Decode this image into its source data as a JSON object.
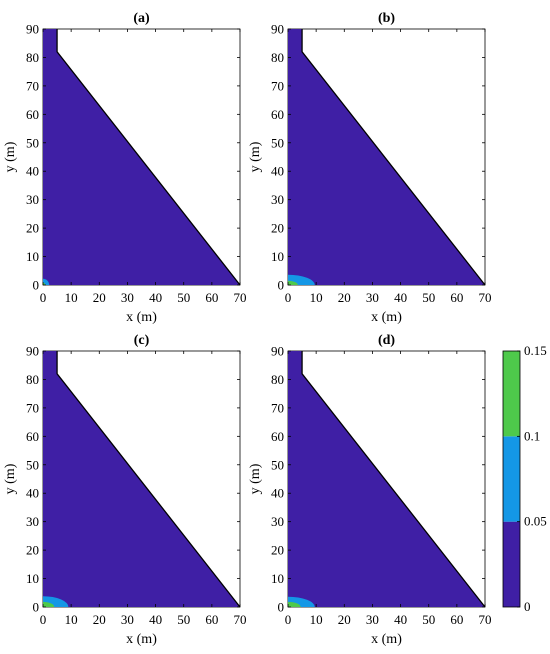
{
  "figure": {
    "colorbar": {
      "ticks": [
        "0",
        "0.05",
        "0.1",
        "0.15"
      ],
      "levels": [
        0,
        0.05,
        0.1,
        0.15
      ],
      "colors": [
        "#3f1fa5",
        "#1497e6",
        "#4ec94b",
        "#ffff0a"
      ]
    }
  },
  "chart_data": [
    {
      "type": "heatmap",
      "title": "(a)",
      "xlabel": "x (m)",
      "ylabel": "y (m)",
      "xlim": [
        0,
        70
      ],
      "ylim": [
        0,
        90
      ],
      "xticks": [
        "0",
        "10",
        "20",
        "30",
        "40",
        "50",
        "60",
        "70"
      ],
      "yticks": [
        "0",
        "10",
        "20",
        "30",
        "40",
        "50",
        "60",
        "70",
        "80",
        "90"
      ],
      "domain_outline": [
        [
          0,
          0
        ],
        [
          70,
          0
        ],
        [
          5,
          82
        ],
        [
          5,
          90
        ],
        [
          0,
          90
        ]
      ],
      "background_level": 0,
      "contours": [
        {
          "level": 0.05,
          "color": "#1497e6",
          "rx": 2.2,
          "ry": 2.2
        },
        {
          "level": 0.1,
          "color": "#4ec94b",
          "rx": 0.8,
          "ry": 0.8
        }
      ]
    },
    {
      "type": "heatmap",
      "title": "(b)",
      "xlabel": "x (m)",
      "ylabel": "y (m)",
      "xlim": [
        0,
        70
      ],
      "ylim": [
        0,
        90
      ],
      "xticks": [
        "0",
        "10",
        "20",
        "30",
        "40",
        "50",
        "60",
        "70"
      ],
      "yticks": [
        "0",
        "10",
        "20",
        "30",
        "40",
        "50",
        "60",
        "70",
        "80",
        "90"
      ],
      "domain_outline": [
        [
          0,
          0
        ],
        [
          70,
          0
        ],
        [
          5,
          82
        ],
        [
          5,
          90
        ],
        [
          0,
          90
        ]
      ],
      "background_level": 0,
      "contours": [
        {
          "level": 0.05,
          "color": "#1497e6",
          "rx": 9.5,
          "ry": 3.6
        },
        {
          "level": 0.1,
          "color": "#4ec94b",
          "rx": 3.5,
          "ry": 1.5
        }
      ]
    },
    {
      "type": "heatmap",
      "title": "(c)",
      "xlabel": "x (m)",
      "ylabel": "y (m)",
      "xlim": [
        0,
        70
      ],
      "ylim": [
        0,
        90
      ],
      "xticks": [
        "0",
        "10",
        "20",
        "30",
        "40",
        "50",
        "60",
        "70"
      ],
      "yticks": [
        "0",
        "10",
        "20",
        "30",
        "40",
        "50",
        "60",
        "70",
        "80",
        "90"
      ],
      "domain_outline": [
        [
          0,
          0
        ],
        [
          70,
          0
        ],
        [
          5,
          82
        ],
        [
          5,
          90
        ],
        [
          0,
          90
        ]
      ],
      "background_level": 0,
      "contours": [
        {
          "level": 0.05,
          "color": "#1497e6",
          "rx": 9.0,
          "ry": 3.8
        },
        {
          "level": 0.1,
          "color": "#4ec94b",
          "rx": 4.0,
          "ry": 1.8
        }
      ]
    },
    {
      "type": "heatmap",
      "title": "(d)",
      "xlabel": "x (m)",
      "ylabel": "y (m)",
      "xlim": [
        0,
        70
      ],
      "ylim": [
        0,
        90
      ],
      "xticks": [
        "0",
        "10",
        "20",
        "30",
        "40",
        "50",
        "60",
        "70"
      ],
      "yticks": [
        "0",
        "10",
        "20",
        "30",
        "40",
        "50",
        "60",
        "70",
        "80",
        "90"
      ],
      "domain_outline": [
        [
          0,
          0
        ],
        [
          70,
          0
        ],
        [
          5,
          82
        ],
        [
          5,
          90
        ],
        [
          0,
          90
        ]
      ],
      "background_level": 0,
      "contours": [
        {
          "level": 0.05,
          "color": "#1497e6",
          "rx": 9.5,
          "ry": 3.6
        },
        {
          "level": 0.1,
          "color": "#4ec94b",
          "rx": 4.5,
          "ry": 1.8
        }
      ]
    }
  ]
}
